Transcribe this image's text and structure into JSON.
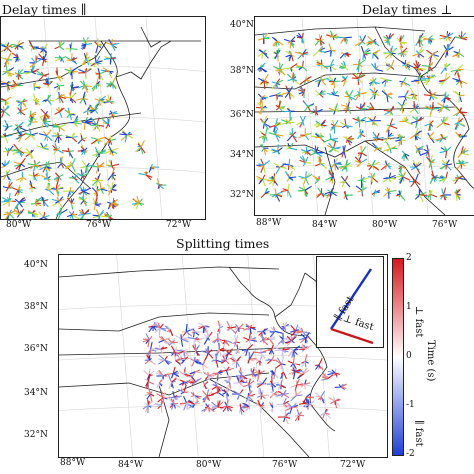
{
  "panels": {
    "left": {
      "title": "Delay times ∥",
      "lon_labels": [
        "80°W",
        "76°W",
        "72°W"
      ]
    },
    "right": {
      "title": "Delay times ⊥",
      "lat_labels": [
        "40°N",
        "38°N",
        "36°N",
        "34°N",
        "32°N"
      ],
      "lon_labels": [
        "88°W",
        "84°W",
        "80°W",
        "76°W"
      ]
    },
    "bottom": {
      "title": "Splitting times",
      "lat_labels": [
        "40°N",
        "38°N",
        "36°N",
        "34°N",
        "32°N"
      ],
      "lon_labels": [
        "88°W",
        "84°W",
        "80°W",
        "76°W",
        "72°W"
      ]
    }
  },
  "colorbar": {
    "ticks": [
      "2",
      "1",
      "0",
      "-1",
      "-2"
    ],
    "label": "Time (s)",
    "top_label": "⊥ fast",
    "bottom_label": "∥ fast",
    "colors": {
      "top": "#d7191c",
      "middle": "#ffffff",
      "bottom": "#1f3fd6"
    }
  },
  "inset": {
    "par_label": "∥ fast",
    "perp_label": "⊥ fast",
    "par_color": "#1a2fc8",
    "perp_color": "#c81a1a"
  },
  "colors": {
    "delay_scale": [
      "#1f3fd6",
      "#2bb0e0",
      "#3cc96a",
      "#bfe03a",
      "#f0a020",
      "#d0301c"
    ],
    "coast": "#1b1b1b"
  }
}
